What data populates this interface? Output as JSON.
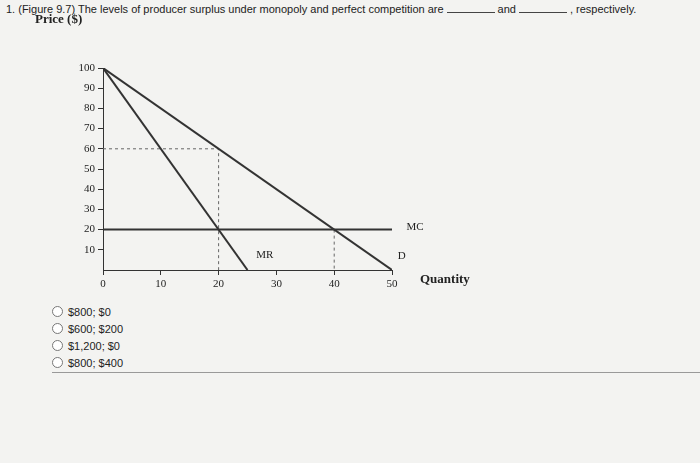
{
  "question": {
    "parts": [
      "1. (Figure 9.7) The levels of producer surplus under monopoly and perfect competition are",
      "and",
      ", respectively."
    ]
  },
  "chart_data": {
    "type": "line",
    "y_label": "Price ($)",
    "x_label": "Quantity",
    "xlim": [
      0,
      50
    ],
    "xticks": [
      0,
      10,
      20,
      30,
      40,
      50
    ],
    "ylim": [
      0,
      100
    ],
    "yticks": [
      10,
      20,
      30,
      40,
      50,
      60,
      70,
      80,
      90,
      100
    ],
    "grid": false,
    "series": [
      {
        "name": "D",
        "color": "#333333",
        "line_style": "solid",
        "x": [
          0,
          50
        ],
        "values": [
          100,
          0
        ],
        "label_position": [
          51.7,
          7
        ]
      },
      {
        "name": "MR",
        "color": "#333333",
        "line_style": "solid",
        "x": [
          0,
          25
        ],
        "values": [
          100,
          0
        ],
        "label_position": [
          28,
          7.4
        ]
      },
      {
        "name": "MC",
        "color": "#333333",
        "line_style": "solid",
        "x": [
          0,
          50
        ],
        "values": [
          20,
          20
        ],
        "label_position": [
          54,
          21
        ]
      },
      {
        "color": "#666666",
        "line_style": "dashed",
        "x": [
          0,
          20,
          20
        ],
        "values": [
          60,
          60,
          0
        ]
      },
      {
        "color": "#666666",
        "line_style": "dashed",
        "x": [
          40,
          40
        ],
        "values": [
          20,
          0
        ]
      }
    ]
  },
  "options": [
    "$800; $0",
    "$600; $200",
    "$1,200; $0",
    "$800; $400"
  ]
}
